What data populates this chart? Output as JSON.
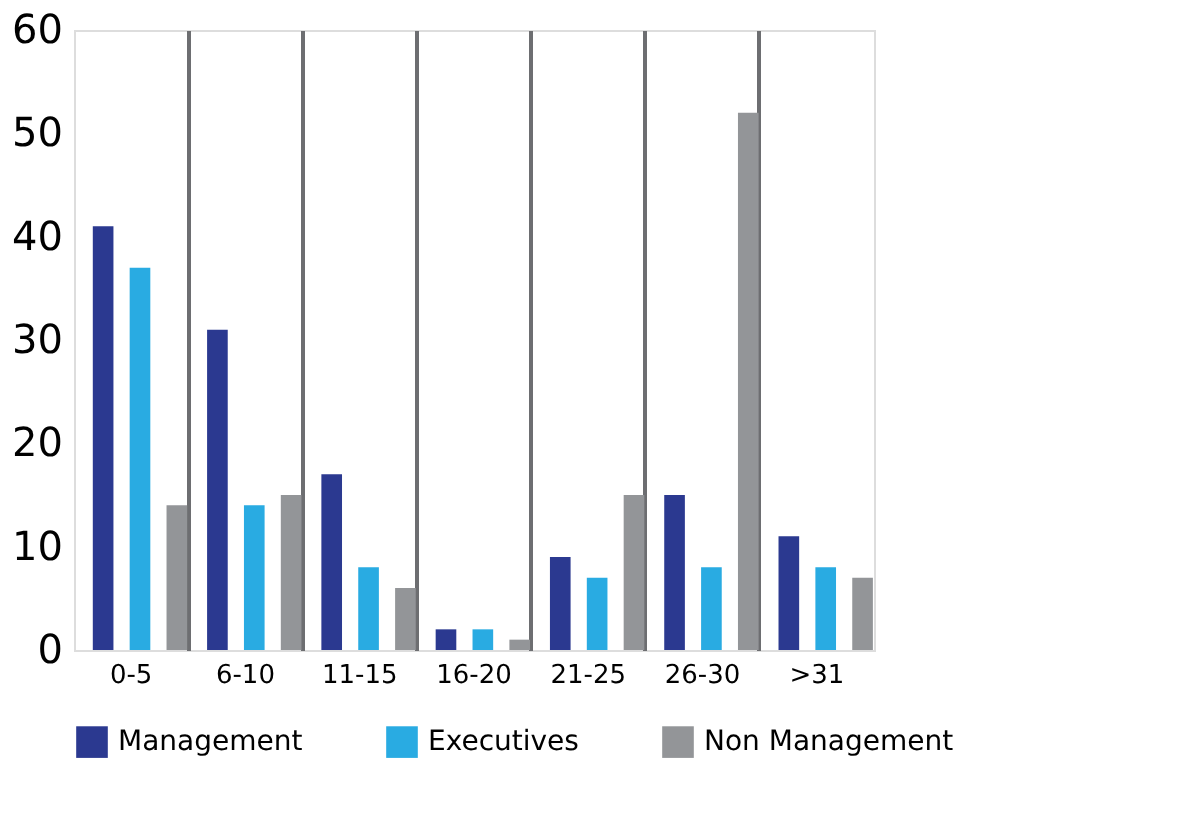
{
  "chart_data": {
    "type": "bar",
    "categories": [
      "0-5",
      "6-10",
      "11-15",
      "16-20",
      "21-25",
      "26-30",
      ">31"
    ],
    "series": [
      {
        "name": "Management",
        "color": "#2b3990",
        "values": [
          41,
          31,
          17,
          2,
          9,
          15,
          11
        ]
      },
      {
        "name": "Executives",
        "color": "#29abe2",
        "values": [
          37,
          14,
          8,
          2,
          7,
          8,
          8
        ]
      },
      {
        "name": "Non Management",
        "color": "#939598",
        "values": [
          14,
          15,
          6,
          1,
          15,
          52,
          7
        ]
      }
    ],
    "ylim": [
      0,
      60
    ],
    "yticks": [
      0,
      10,
      20,
      30,
      40,
      50,
      60
    ],
    "grid": "x",
    "legend": "bottom"
  }
}
